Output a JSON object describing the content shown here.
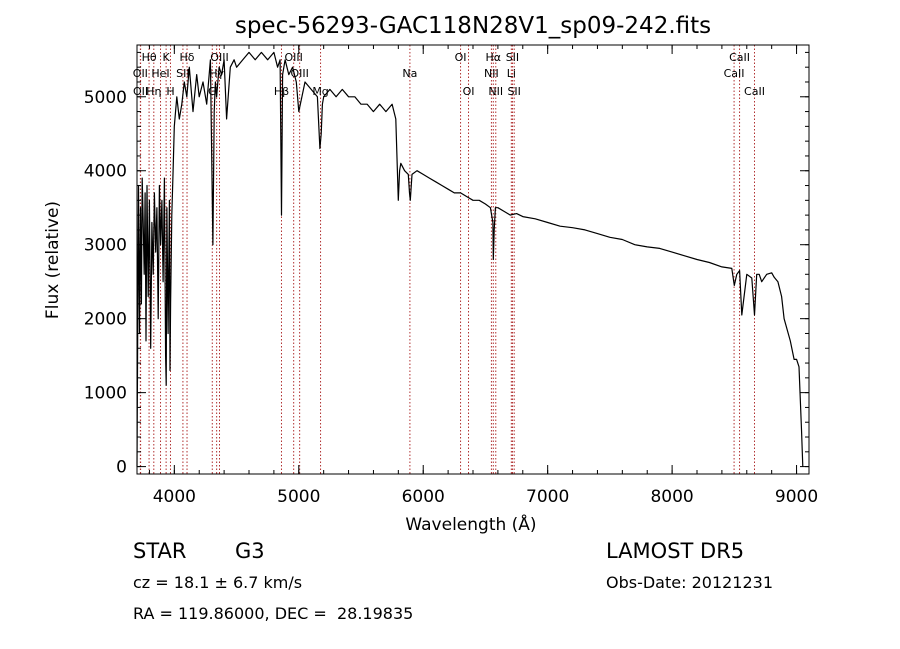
{
  "chart_data": {
    "type": "line",
    "title": "spec-56293-GAC118N28V1_sp09-242.fits",
    "xlabel": "Wavelength (Å)",
    "ylabel": "Flux (relative)",
    "xlim": [
      3700,
      9100
    ],
    "ylim": [
      -100,
      5700
    ],
    "grid": false,
    "x_ticks": [
      4000,
      5000,
      6000,
      7000,
      8000,
      9000
    ],
    "x_tick_labels": [
      "4000",
      "5000",
      "6000",
      "7000",
      "8000",
      "9000"
    ],
    "y_ticks": [
      0,
      1000,
      2000,
      3000,
      4000,
      5000
    ],
    "y_tick_labels": [
      "0",
      "1000",
      "2000",
      "3000",
      "4000",
      "5000"
    ],
    "line_color": "#000000",
    "marker_color": "#b03030",
    "series": [
      {
        "x": [
          3700,
          3705,
          3712,
          3720,
          3728,
          3735,
          3742,
          3750,
          3758,
          3765,
          3772,
          3780,
          3790,
          3800,
          3810,
          3820,
          3830,
          3840,
          3850,
          3860,
          3870,
          3880,
          3890,
          3900,
          3910,
          3920,
          3930,
          3935,
          3940,
          3950,
          3960,
          3965,
          3970,
          3980,
          3990,
          4000,
          4020,
          4040,
          4060,
          4080,
          4100,
          4120,
          4150,
          4180,
          4200,
          4230,
          4260,
          4290,
          4300,
          4310,
          4320,
          4330,
          4340,
          4360,
          4380,
          4400,
          4420,
          4450,
          4480,
          4500,
          4550,
          4600,
          4650,
          4700,
          4750,
          4800,
          4830,
          4850,
          4861,
          4870,
          4890,
          4920,
          4950,
          4980,
          5000,
          5050,
          5100,
          5150,
          5170,
          5180,
          5190,
          5200,
          5250,
          5300,
          5350,
          5400,
          5450,
          5500,
          5550,
          5600,
          5650,
          5700,
          5750,
          5780,
          5800,
          5810,
          5820,
          5850,
          5880,
          5890,
          5896,
          5910,
          5950,
          6000,
          6050,
          6100,
          6150,
          6200,
          6250,
          6300,
          6350,
          6400,
          6450,
          6500,
          6540,
          6560,
          6563,
          6570,
          6580,
          6600,
          6650,
          6700,
          6750,
          6800,
          6900,
          7000,
          7100,
          7200,
          7300,
          7400,
          7500,
          7600,
          7700,
          7800,
          7900,
          8000,
          8100,
          8200,
          8300,
          8400,
          8480,
          8500,
          8520,
          8542,
          8560,
          8600,
          8640,
          8662,
          8680,
          8700,
          8720,
          8760,
          8800,
          8820,
          8850,
          8880,
          8900,
          8950,
          8980,
          9000,
          9020,
          9040,
          9050
        ],
        "y": [
          0,
          1600,
          3800,
          1800,
          3500,
          2200,
          3900,
          3300,
          2600,
          3700,
          1700,
          3800,
          2300,
          3600,
          1600,
          3300,
          2600,
          3700,
          2900,
          3500,
          2000,
          3800,
          3000,
          3600,
          2500,
          3900,
          1500,
          1100,
          3500,
          1800,
          3600,
          1300,
          2200,
          3400,
          4000,
          4600,
          5000,
          4700,
          4900,
          5200,
          5000,
          5400,
          4800,
          5300,
          5000,
          5200,
          4900,
          5500,
          4200,
          3000,
          4800,
          5200,
          5000,
          5400,
          5300,
          5500,
          4700,
          5400,
          5500,
          5400,
          5500,
          5600,
          5500,
          5600,
          5500,
          5600,
          5400,
          5500,
          3400,
          5300,
          5500,
          5300,
          5400,
          5200,
          4800,
          5200,
          5100,
          5000,
          4300,
          4500,
          4900,
          5000,
          5100,
          5000,
          5100,
          5000,
          5000,
          4900,
          4900,
          4800,
          4900,
          4800,
          4900,
          4700,
          3600,
          4000,
          4100,
          4000,
          3950,
          3700,
          3600,
          3950,
          4000,
          3950,
          3900,
          3850,
          3800,
          3750,
          3700,
          3700,
          3650,
          3600,
          3600,
          3550,
          3500,
          3300,
          2800,
          3200,
          3500,
          3500,
          3450,
          3400,
          3420,
          3380,
          3350,
          3300,
          3250,
          3230,
          3200,
          3150,
          3100,
          3070,
          3000,
          2970,
          2950,
          2900,
          2850,
          2800,
          2760,
          2700,
          2680,
          2450,
          2600,
          2650,
          2050,
          2600,
          2550,
          2050,
          2600,
          2600,
          2500,
          2600,
          2620,
          2560,
          2500,
          2300,
          2000,
          1700,
          1450,
          1450,
          1350,
          500,
          0
        ]
      }
    ],
    "lines": [
      {
        "label": "Hθ",
        "x": 3797,
        "row": 1
      },
      {
        "label": "OII",
        "x": 3727,
        "row": 2
      },
      {
        "label": "OII",
        "x": 3729,
        "row": 3
      },
      {
        "label": "HeI",
        "x": 3889,
        "row": 2
      },
      {
        "label": "Hη",
        "x": 3835,
        "row": 3
      },
      {
        "label": "K",
        "x": 3934,
        "row": 1
      },
      {
        "label": "SII",
        "x": 4069,
        "row": 2
      },
      {
        "label": "H",
        "x": 3969,
        "row": 3
      },
      {
        "label": "Hδ",
        "x": 4102,
        "row": 1
      },
      {
        "label": "OIII",
        "x": 4363,
        "row": 1
      },
      {
        "label": "Hγ",
        "x": 4340,
        "row": 2
      },
      {
        "label": "G",
        "x": 4305,
        "row": 3
      },
      {
        "label": "OIII",
        "x": 4959,
        "row": 1
      },
      {
        "label": "OIII",
        "x": 5007,
        "row": 2
      },
      {
        "label": "Hβ",
        "x": 4861,
        "row": 3
      },
      {
        "label": "Mg",
        "x": 5175,
        "row": 3
      },
      {
        "label": "Na",
        "x": 5893,
        "row": 2
      },
      {
        "label": "OI",
        "x": 6300,
        "row": 1
      },
      {
        "label": "OI",
        "x": 6364,
        "row": 3
      },
      {
        "label": "Hα",
        "x": 6563,
        "row": 1
      },
      {
        "label": "SII",
        "x": 6717,
        "row": 1
      },
      {
        "label": "NII",
        "x": 6548,
        "row": 2
      },
      {
        "label": "Li",
        "x": 6708,
        "row": 2
      },
      {
        "label": "NII",
        "x": 6583,
        "row": 3
      },
      {
        "label": "SII",
        "x": 6731,
        "row": 3
      },
      {
        "label": "CaII",
        "x": 8542,
        "row": 1
      },
      {
        "label": "CaII",
        "x": 8498,
        "row": 2
      },
      {
        "label": "CaII",
        "x": 8662,
        "row": 3
      }
    ]
  },
  "info": {
    "class_label": "STAR",
    "subclass_label": "G3",
    "survey_label": "LAMOST DR5",
    "cz_label": "cz = 18.1 ± 6.7 km/s",
    "obs_date_label": "Obs-Date: 20121231",
    "coords_label": "RA = 119.86000, DEC =  28.19835"
  }
}
